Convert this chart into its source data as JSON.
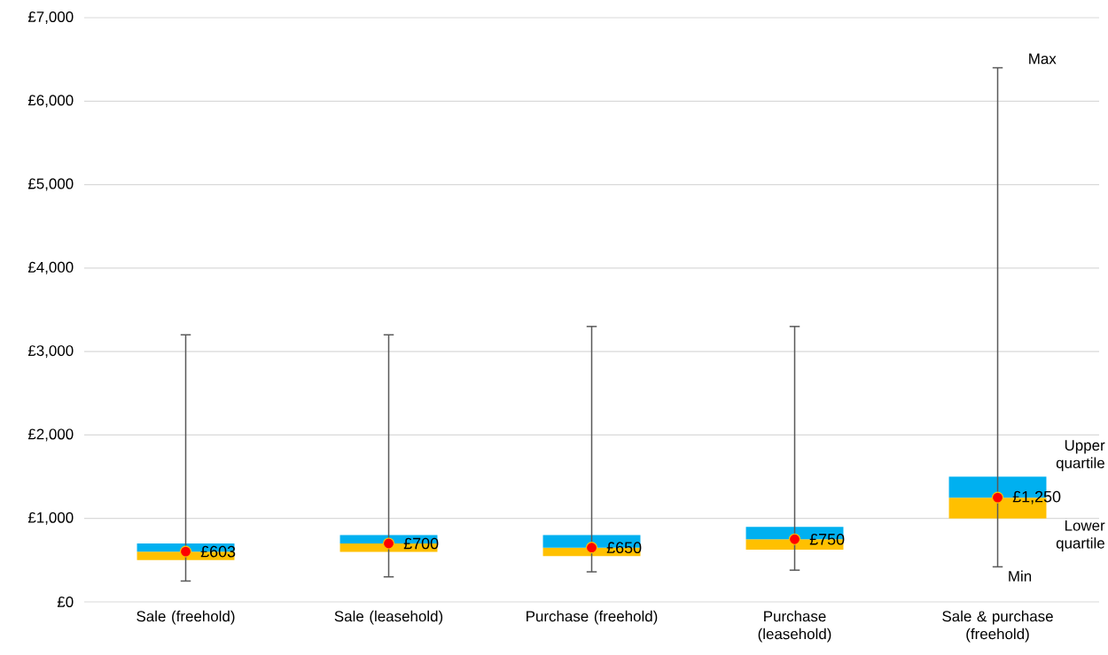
{
  "chart_data": {
    "type": "box",
    "categories": [
      "Sale (freehold)",
      "Sale (leasehold)",
      "Purchase (freehold)",
      "Purchase (leasehold)",
      "Sale & purchase (freehold)"
    ],
    "boxes": [
      {
        "low": 250,
        "q1": 500,
        "median": 603,
        "q3": 700,
        "high": 3200
      },
      {
        "low": 300,
        "q1": 600,
        "median": 700,
        "q3": 800,
        "high": 3200
      },
      {
        "low": 360,
        "q1": 550,
        "median": 650,
        "q3": 800,
        "high": 3300
      },
      {
        "low": 380,
        "q1": 625,
        "median": 750,
        "q3": 900,
        "high": 3300
      },
      {
        "low": 420,
        "q1": 1000,
        "median": 1250,
        "q3": 1500,
        "high": 6400
      }
    ],
    "marker": "circle",
    "ylim": [
      0,
      7000
    ],
    "yticks": [
      {
        "value": 0,
        "label": "£0"
      },
      {
        "value": 1000,
        "label": "£1,000"
      },
      {
        "value": 2000,
        "label": "£2,000"
      },
      {
        "value": 3000,
        "label": "£3,000"
      },
      {
        "value": 4000,
        "label": "£4,000"
      },
      {
        "value": 5000,
        "label": "£5,000"
      },
      {
        "value": 6000,
        "label": "£6,000"
      },
      {
        "value": 7000,
        "label": "£7,000"
      }
    ],
    "grid": "y",
    "annotations": [
      {
        "text": "£603",
        "x": "Sale (freehold)",
        "y": 603
      },
      {
        "text": "£700",
        "x": "Sale (leasehold)",
        "y": 700
      },
      {
        "text": "£650",
        "x": "Purchase (freehold)",
        "y": 650
      },
      {
        "text": "£750",
        "x": "Purchase (leasehold)",
        "y": 750
      },
      {
        "text": "£1,250",
        "x": "Sale & purchase (freehold)",
        "y": 1250
      },
      {
        "text": "Max",
        "x": "Sale & purchase (freehold)",
        "y": 6400
      },
      "Upper quartile",
      "Lower quartile",
      {
        "text": "Min",
        "x": "Sale & purchase (freehold)",
        "y": 420
      }
    ]
  }
}
